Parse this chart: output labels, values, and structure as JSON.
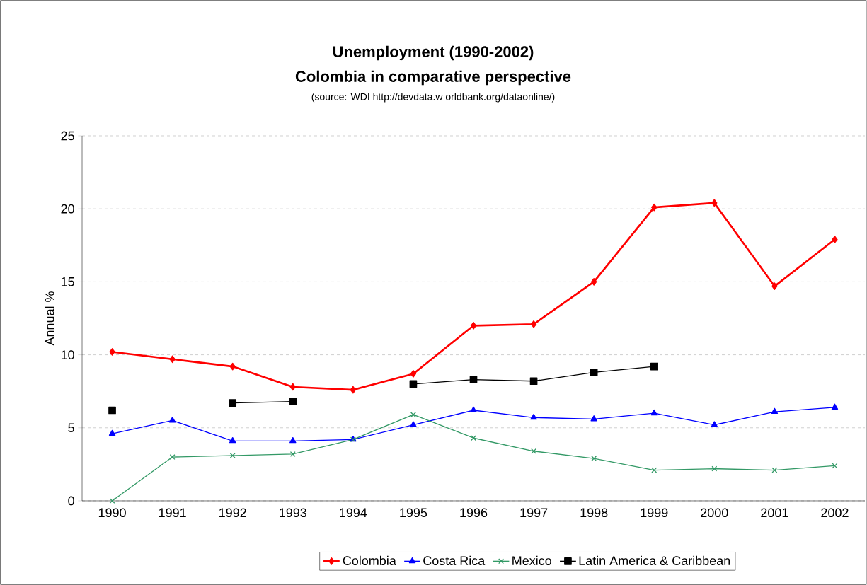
{
  "chart_data": {
    "type": "line",
    "title": "Unemployment (1990-2002)",
    "subtitle": "Colombia in comparative perspective",
    "annotations": [
      "(source: WDI http://devdata.w orldbank.org/dataonline/)"
    ],
    "ylabel": "Annual %",
    "categories": [
      "1990",
      "1991",
      "1992",
      "1993",
      "1994",
      "1995",
      "1996",
      "1997",
      "1998",
      "1999",
      "2000",
      "2001",
      "2002"
    ],
    "series": [
      {
        "name": "Colombia",
        "color": "#ff0000",
        "marker": "diamond",
        "values": [
          10.2,
          9.7,
          9.2,
          7.8,
          7.6,
          8.7,
          12.0,
          12.1,
          15.0,
          20.1,
          20.4,
          14.7,
          17.9
        ]
      },
      {
        "name": "Costa Rica",
        "color": "#0000ff",
        "marker": "triangle",
        "values": [
          4.6,
          5.5,
          4.1,
          4.1,
          4.2,
          5.2,
          6.2,
          5.7,
          5.6,
          6.0,
          5.2,
          6.1,
          6.4
        ]
      },
      {
        "name": "Mexico",
        "color": "#339966",
        "marker": "cross",
        "values": [
          0,
          3.0,
          3.1,
          3.2,
          4.2,
          5.9,
          4.3,
          3.4,
          2.9,
          2.1,
          2.2,
          2.1,
          2.4
        ]
      },
      {
        "name": "Latin America & Caribbean",
        "color": "#000000",
        "marker": "square",
        "values": [
          6.2,
          null,
          6.7,
          6.8,
          null,
          8.0,
          8.3,
          8.2,
          8.8,
          9.2,
          null,
          null,
          null
        ]
      }
    ],
    "ylim": [
      0,
      25
    ],
    "yticks": [
      0,
      5,
      10,
      15,
      20,
      25
    ],
    "grid": "y",
    "legend": "bottom",
    "line_style": "solid"
  }
}
